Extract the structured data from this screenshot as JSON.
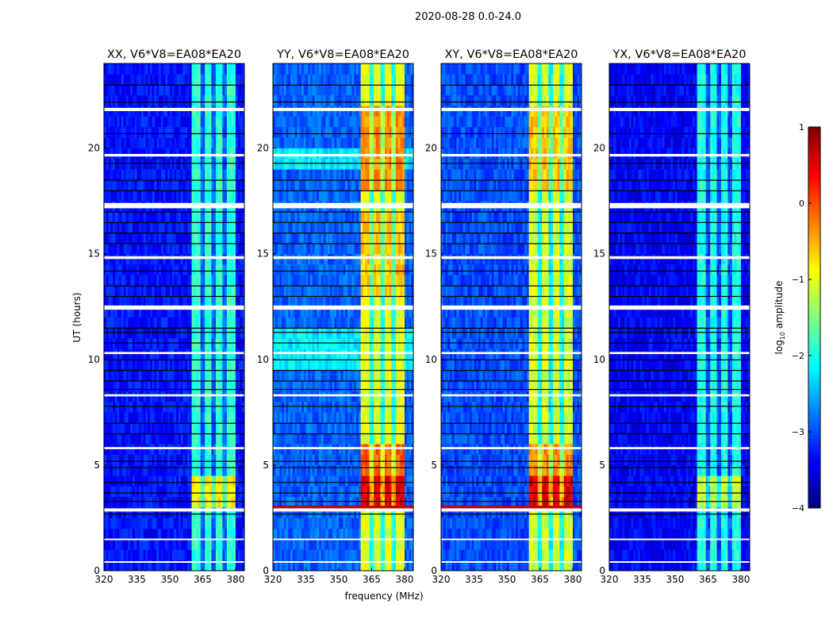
{
  "chart_data": {
    "type": "heatmap",
    "title": "2020-08-28 0.0-24.0",
    "xlabel": "frequency (MHz)",
    "ylabel": "UT (hours)",
    "xlim": [
      320,
      384
    ],
    "ylim": [
      0,
      24
    ],
    "xticks": [
      320,
      335,
      350,
      365,
      380
    ],
    "yticks": [
      0,
      5,
      10,
      15,
      20
    ],
    "colorbar": {
      "label": "log10 amplitude",
      "label_main": "log",
      "label_sub": "10",
      "label_rest": " amplitude",
      "range": [
        -4,
        1
      ],
      "ticks": [
        "1",
        "0",
        "−1",
        "−2",
        "−3",
        "−4"
      ],
      "tick_values": [
        1,
        0,
        -1,
        -2,
        -3,
        -4
      ],
      "colormap": "jet"
    },
    "rfi_band_mhz": [
      360.5,
      380
    ],
    "rfi_dip_columns_mhz": [
      365,
      370,
      375
    ],
    "flagged_white_hours": [
      [
        21.75,
        21.9
      ],
      [
        19.6,
        19.72
      ],
      [
        17.15,
        17.4
      ],
      [
        14.75,
        14.88
      ],
      [
        12.35,
        12.55
      ],
      [
        10.25,
        10.35
      ],
      [
        8.25,
        8.35
      ],
      [
        5.75,
        5.85
      ],
      [
        2.8,
        2.95
      ],
      [
        1.45,
        1.52
      ],
      [
        0.38,
        0.45
      ]
    ],
    "dark_line_hours": [
      23.0,
      22.2,
      20.7,
      19.3,
      18.5,
      18.0,
      17.0,
      16.5,
      16.0,
      15.5,
      14.2,
      13.5,
      13.0,
      11.5,
      11.3,
      10.8,
      10.0,
      9.5,
      9.0,
      8.6,
      7.8,
      7.0,
      6.5,
      5.2,
      4.9,
      4.2,
      3.7,
      3.3,
      2.7
    ],
    "panels": [
      {
        "title": "XX, V6*V8=EA08*EA20",
        "background_level": -3.3,
        "background_regions": [],
        "band_segments": [
          {
            "from": 0,
            "to": 24,
            "level": -1.9
          },
          {
            "from": 3,
            "to": 4.6,
            "level": -0.8
          }
        ],
        "red_line_hours": []
      },
      {
        "title": "YY, V6*V8=EA08*EA20",
        "background_level": -2.9,
        "background_regions": [
          {
            "from": 9.5,
            "to": 11.6,
            "level": -2.2
          },
          {
            "from": 19.2,
            "to": 20,
            "level": -2.2
          }
        ],
        "band_segments": [
          {
            "from": 0,
            "to": 24,
            "level": -1.0
          },
          {
            "from": 18,
            "to": 22,
            "level": -0.3
          },
          {
            "from": 13,
            "to": 17,
            "level": -0.6
          },
          {
            "from": 3,
            "to": 6,
            "level": -0.1
          },
          {
            "from": 3.2,
            "to": 4.4,
            "level": 0.5
          }
        ],
        "red_line_hours": [
          3.0
        ]
      },
      {
        "title": "XY, V6*V8=EA08*EA20",
        "background_level": -3.0,
        "background_regions": [],
        "band_segments": [
          {
            "from": 0,
            "to": 24,
            "level": -1.1
          },
          {
            "from": 18,
            "to": 22,
            "level": -0.6
          },
          {
            "from": 3,
            "to": 6,
            "level": -0.3
          },
          {
            "from": 3.2,
            "to": 4.4,
            "level": 0.5
          }
        ],
        "red_line_hours": [
          3.0
        ]
      },
      {
        "title": "YX, V6*V8=EA08*EA20",
        "background_level": -3.4,
        "background_regions": [],
        "band_segments": [
          {
            "from": 0,
            "to": 24,
            "level": -2.0
          },
          {
            "from": 3,
            "to": 4.6,
            "level": -1.2
          }
        ],
        "red_line_hours": []
      }
    ]
  }
}
